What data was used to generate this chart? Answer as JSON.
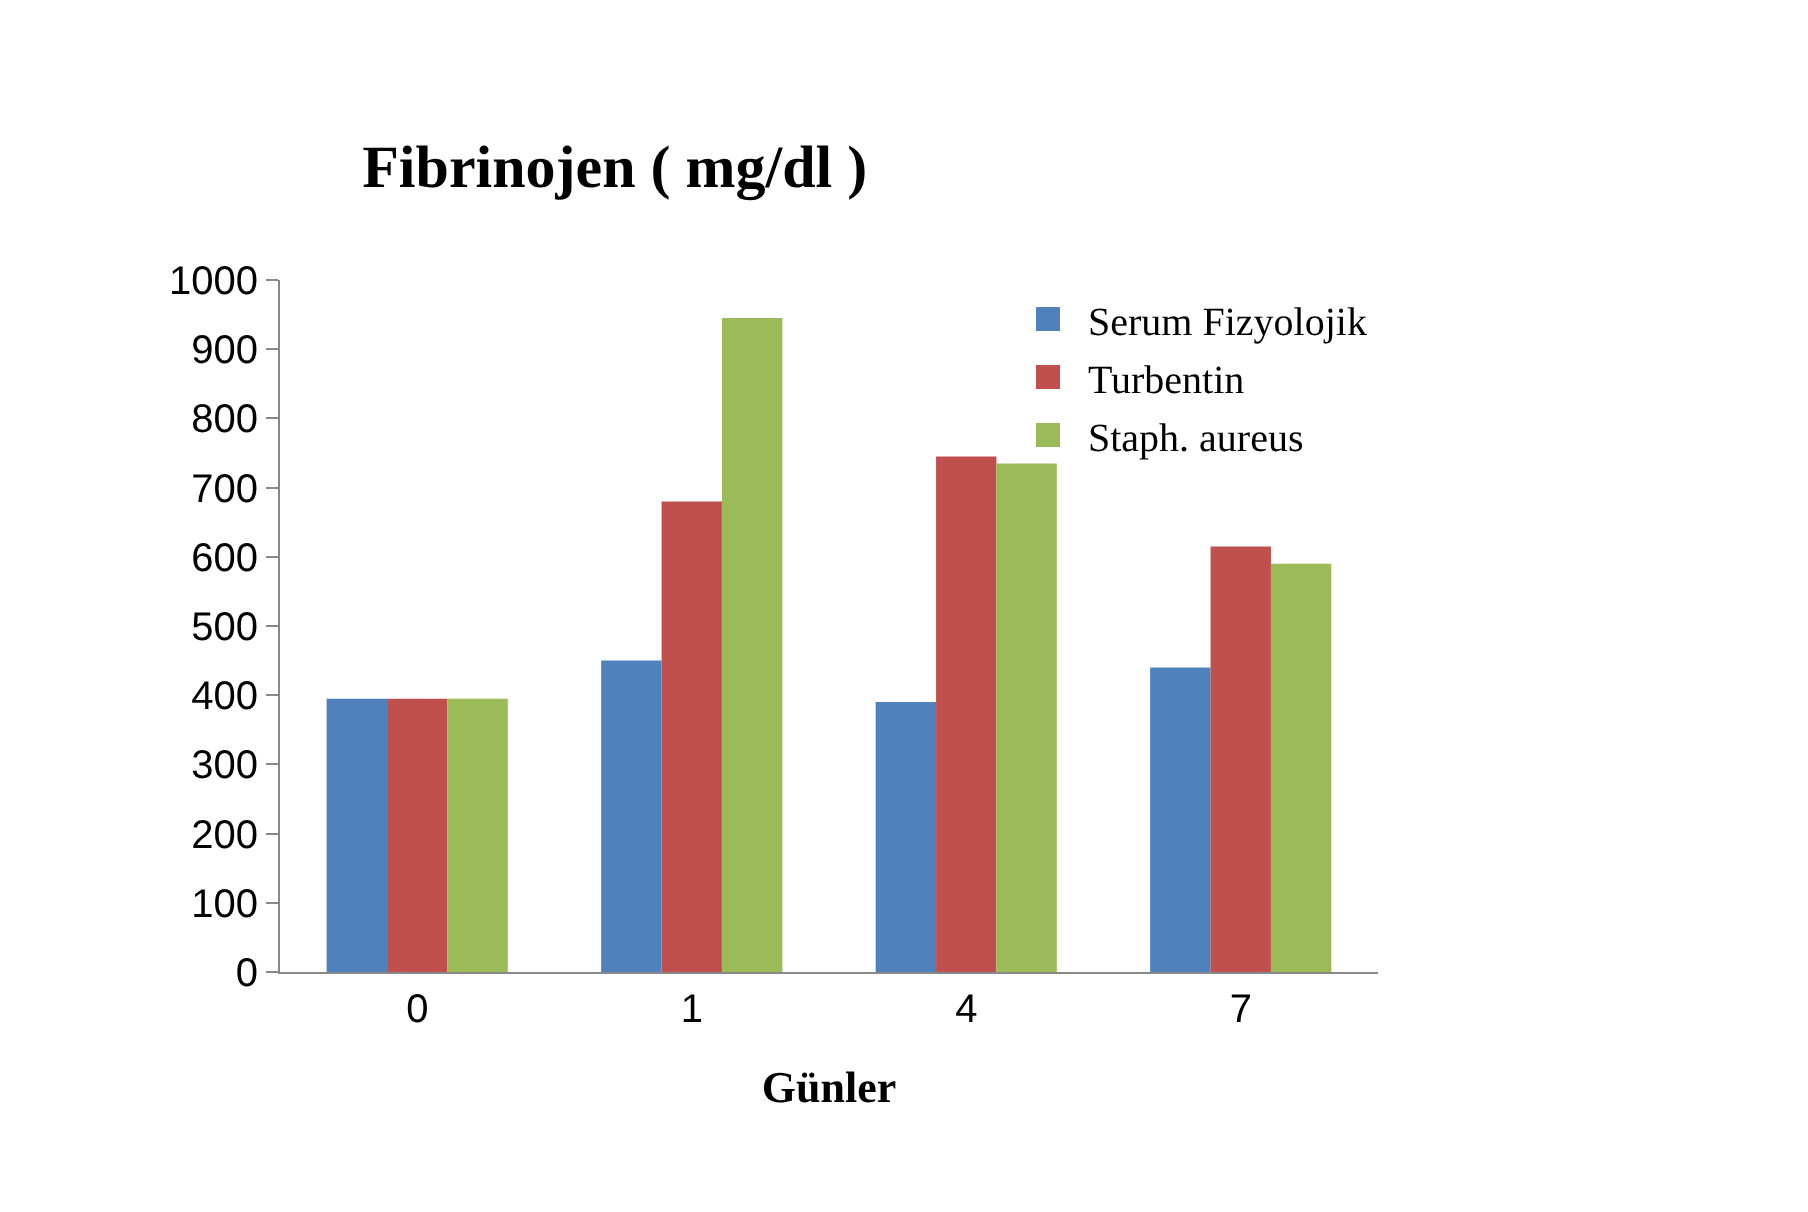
{
  "chart_data": {
    "type": "bar",
    "title": "Fibrinojen ( mg/dl )",
    "xlabel": "Günler",
    "categories": [
      "0",
      "1",
      "4",
      "7"
    ],
    "series": [
      {
        "name": "Serum Fizyolojik",
        "color": "#4f81bd",
        "values": [
          395,
          450,
          390,
          440
        ]
      },
      {
        "name": "Turbentin",
        "color": "#c0504d",
        "values": [
          395,
          680,
          745,
          615
        ]
      },
      {
        "name": "Staph. aureus",
        "color": "#9bbb59",
        "values": [
          395,
          945,
          735,
          590
        ]
      }
    ],
    "ylim": [
      0,
      1000
    ],
    "yticks": [
      0,
      100,
      200,
      300,
      400,
      500,
      600,
      700,
      800,
      900,
      1000
    ],
    "grid": false,
    "legend": "top right"
  }
}
